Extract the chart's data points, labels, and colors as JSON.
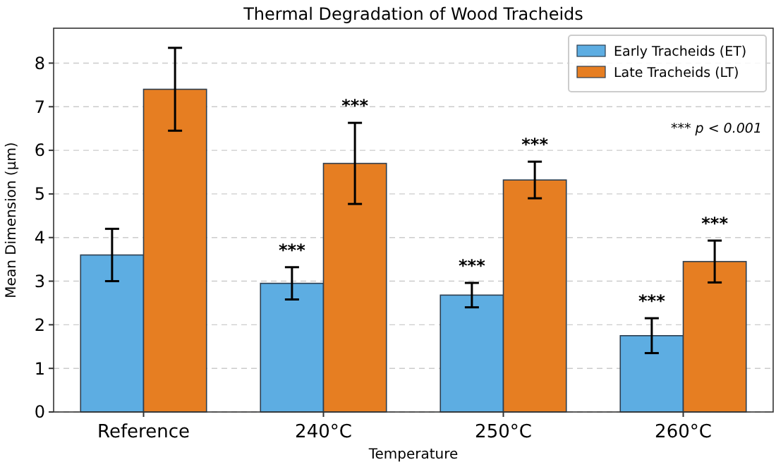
{
  "chart_data": {
    "type": "bar",
    "title": "Thermal Degradation of Wood Tracheids",
    "xlabel": "Temperature",
    "ylabel": "Mean Dimension (μm)",
    "categories": [
      "Reference",
      "240°C",
      "250°C",
      "260°C"
    ],
    "series": [
      {
        "name": "Early Tracheids (ET)",
        "color": "#5dade2",
        "values": [
          3.6,
          2.95,
          2.68,
          1.75
        ],
        "errors": [
          0.6,
          0.37,
          0.28,
          0.4
        ]
      },
      {
        "name": "Late Tracheids (LT)",
        "color": "#e67e22",
        "values": [
          7.4,
          5.7,
          5.32,
          3.45
        ],
        "errors": [
          0.95,
          0.93,
          0.42,
          0.48
        ]
      }
    ],
    "ylim": [
      0,
      8.8
    ],
    "yticks": [
      0,
      1,
      2,
      3,
      4,
      5,
      6,
      7,
      8
    ],
    "grid": "y",
    "legend": "top right",
    "annotations": [
      {
        "text": "***",
        "x": "240°C",
        "y": 3.32
      },
      "***",
      {
        "text": "***",
        "x": "250°C",
        "y": 2.96
      },
      "***",
      {
        "text": "***",
        "x": "260°C",
        "y": 2.15
      },
      "***",
      "*** p < 0.001"
    ]
  }
}
